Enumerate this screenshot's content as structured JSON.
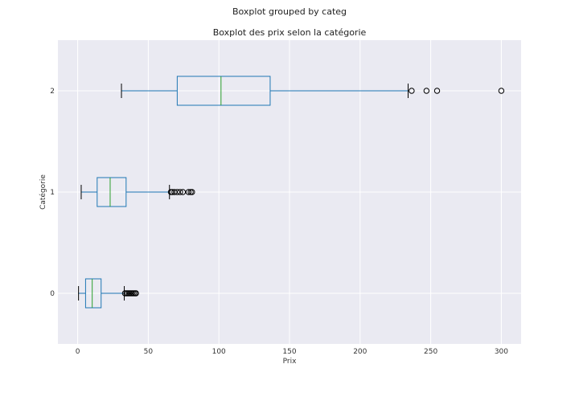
{
  "chart_data": {
    "type": "boxplot",
    "orientation": "horizontal",
    "suptitle": "Boxplot grouped by categ",
    "title": "Boxplot des prix selon la catégorie",
    "xlabel": "Prix",
    "ylabel": "Catégorie",
    "xlim": [
      -14,
      314
    ],
    "xticks": [
      0,
      50,
      100,
      150,
      200,
      250,
      300
    ],
    "categories": [
      "0",
      "1",
      "2"
    ],
    "grid": true,
    "colors": {
      "background": "#eaeaf2",
      "grid": "#ffffff",
      "box": "#1f77b4",
      "median": "#2ca02c",
      "whisker_cap": "#000000",
      "flier": "#000000"
    },
    "boxes": [
      {
        "category": "0",
        "whisker_low": 0.6,
        "q1": 5.6,
        "median": 10.3,
        "q3": 16.6,
        "whisker_high": 33.0,
        "fliers": [
          33.5,
          34.5,
          35.5,
          36.5,
          37.5,
          38.5,
          39.5,
          40.5,
          41.3
        ]
      },
      {
        "category": "1",
        "whisker_low": 2.5,
        "q1": 13.8,
        "median": 23.0,
        "q3": 34.3,
        "whisker_high": 65.0,
        "fliers": [
          66.0,
          67.0,
          68.5,
          70.5,
          72.5,
          74.5,
          78.5,
          80.0,
          81.0
        ]
      },
      {
        "category": "2",
        "whisker_low": 31.0,
        "q1": 70.5,
        "median": 101.5,
        "q3": 136.3,
        "whisker_high": 234.0,
        "fliers": [
          236.5,
          247.0,
          254.5,
          300.0
        ]
      }
    ]
  }
}
